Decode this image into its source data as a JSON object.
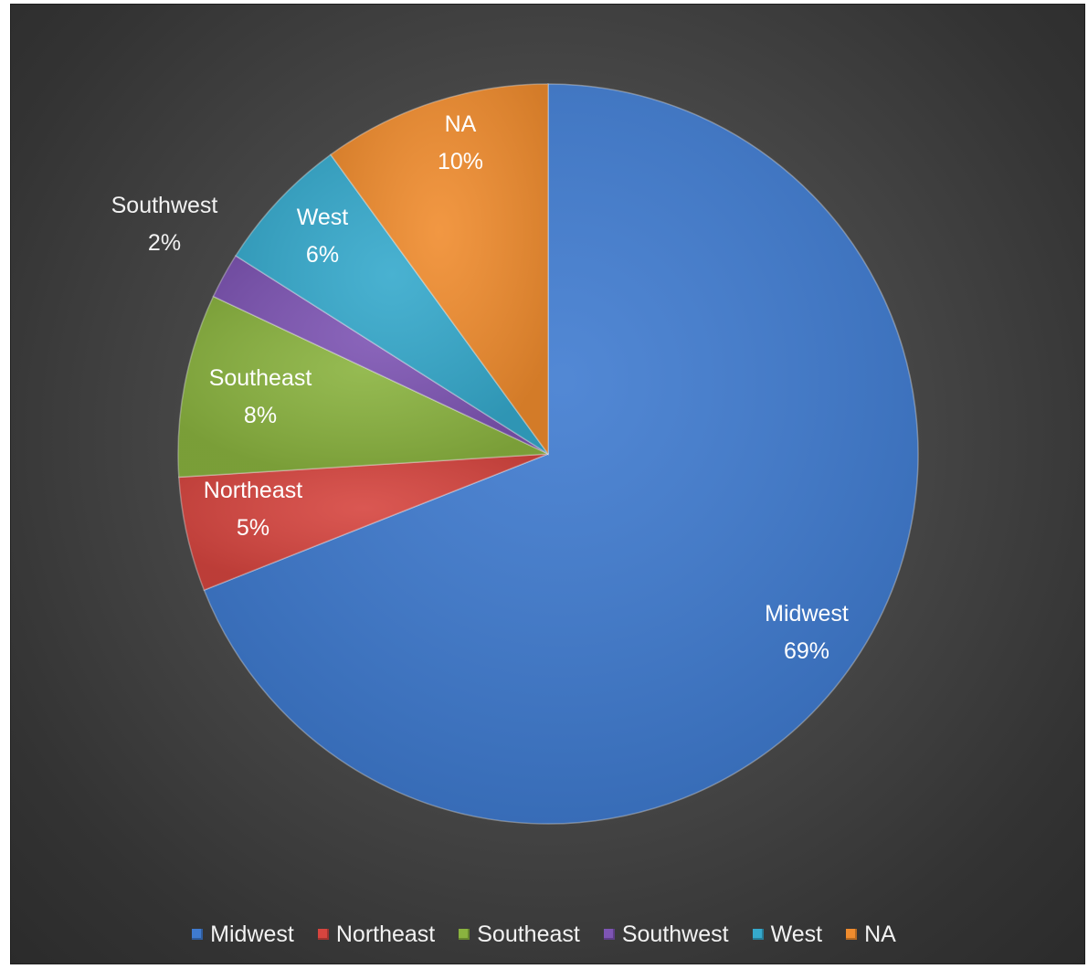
{
  "chart_data": {
    "type": "pie",
    "title": "",
    "slices": [
      {
        "label": "Midwest",
        "value": 69,
        "display": "69%",
        "color": "#3f7bd0"
      },
      {
        "label": "Northeast",
        "value": 5,
        "display": "5%",
        "color": "#d6453f"
      },
      {
        "label": "Southeast",
        "value": 8,
        "display": "8%",
        "color": "#8ab33f"
      },
      {
        "label": "Southwest",
        "value": 2,
        "display": "2%",
        "color": "#7e55b4"
      },
      {
        "label": "West",
        "value": 6,
        "display": "6%",
        "color": "#35a9cc"
      },
      {
        "label": "NA",
        "value": 10,
        "display": "10%",
        "color": "#f08c2e"
      }
    ],
    "start_angle_deg": 0,
    "direction": "clockwise",
    "legend_position": "bottom",
    "background": "#404040"
  }
}
